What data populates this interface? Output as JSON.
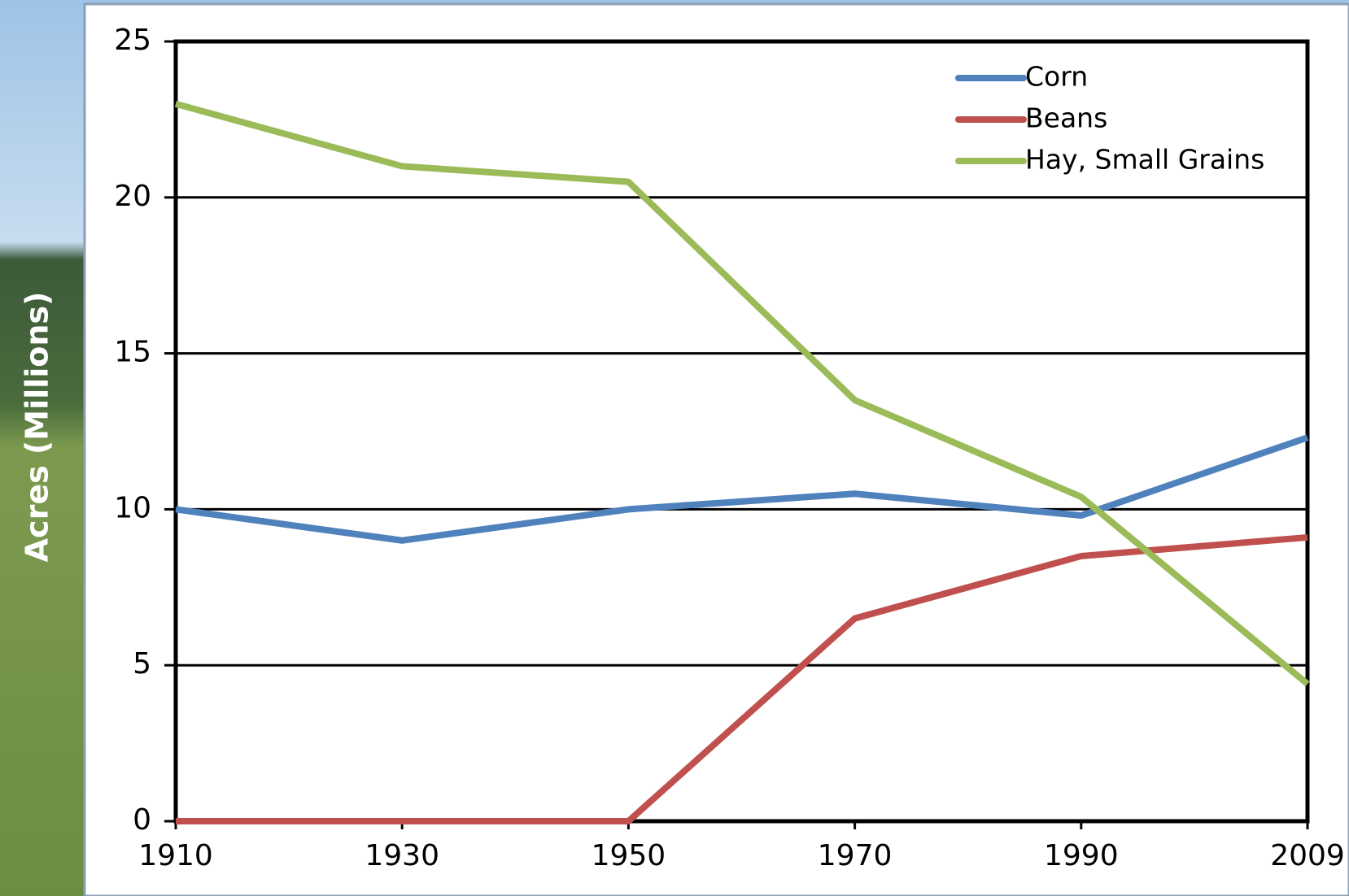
{
  "chart_data": {
    "type": "line",
    "y_label": "Acres (Millions)",
    "categories": [
      "1910",
      "1930",
      "1950",
      "1970",
      "1990",
      "2009"
    ],
    "series": [
      {
        "name": "Corn",
        "color": "#4f81bd",
        "values": [
          10,
          9,
          10,
          10.5,
          9.8,
          12.3
        ]
      },
      {
        "name": "Beans",
        "color": "#c0504d",
        "values": [
          0,
          0,
          0,
          6.5,
          8.5,
          9.1
        ]
      },
      {
        "name": "Hay, Small Grains",
        "color": "#9bbb59",
        "values": [
          23,
          21,
          20.5,
          13.5,
          10.4,
          4.4
        ]
      }
    ],
    "ylim": [
      0,
      25
    ],
    "yticks": [
      0,
      5,
      10,
      15,
      20,
      25
    ],
    "grid": true,
    "legend": "top-right"
  }
}
